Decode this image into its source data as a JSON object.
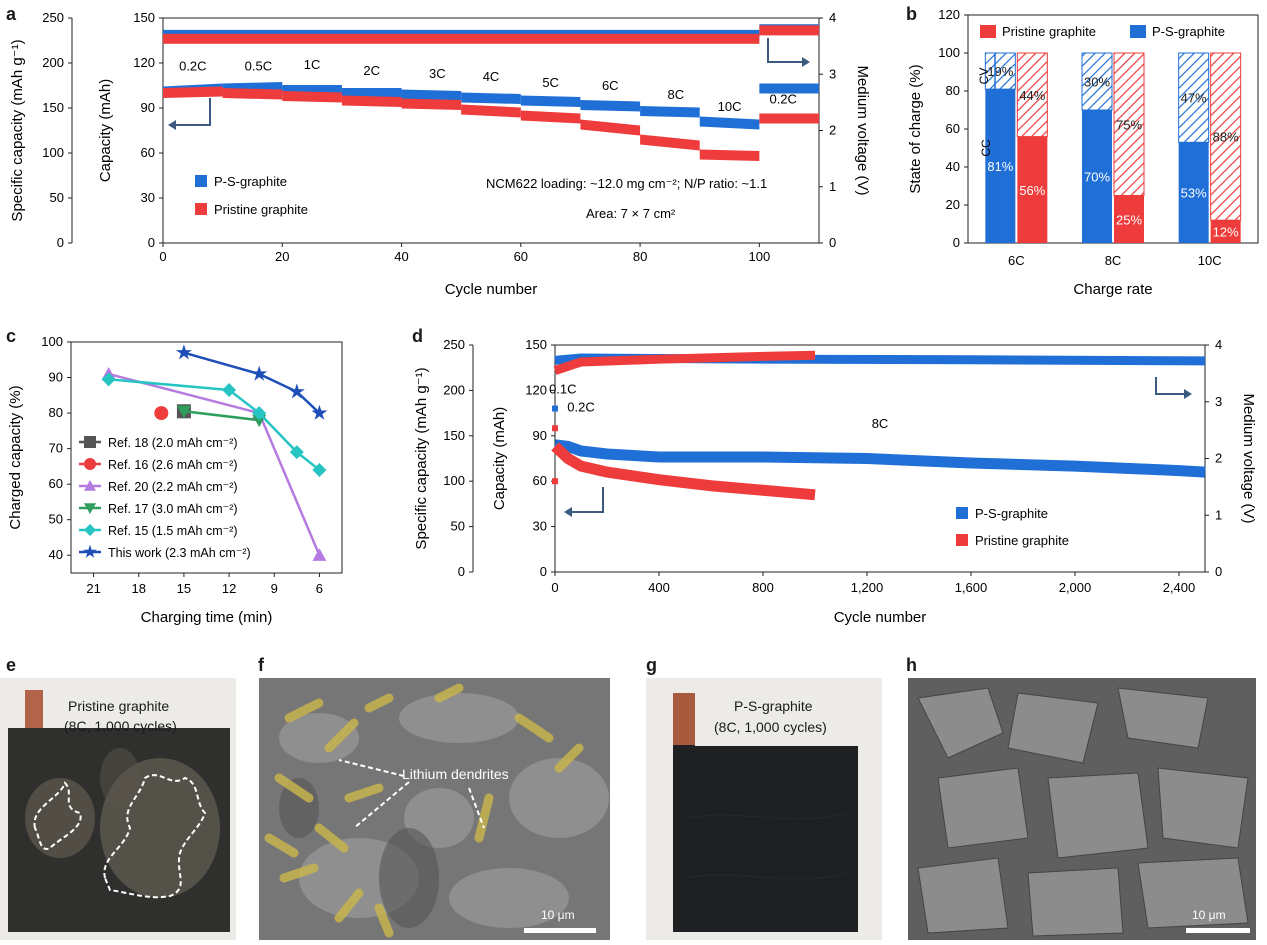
{
  "colors": {
    "blue": "#1f6fd6",
    "red": "#ee3b3b",
    "purple": "#b57be0",
    "green": "#2e9e5c",
    "cyan": "#27c4c4",
    "gray": "#555555",
    "darkblue": "#1e4fb8",
    "bg_cell": "#f2f2ef",
    "sem_gray": "#6e6e6e",
    "dendrite": "#c6b44e"
  },
  "panels": {
    "a": {
      "letter": "a",
      "chart_data": {
        "type": "line",
        "xlabel": "Cycle number",
        "ylabel_left_outer": "Specific capacity (mAh g⁻¹)",
        "ylabel_left_inner": "Capacity (mAh)",
        "ylabel_right": "Medium voltage (V)",
        "xlim": [
          0,
          110
        ],
        "xticks": [
          0,
          20,
          40,
          60,
          80,
          100
        ],
        "ylim_capacity": [
          0,
          150
        ],
        "yticks_capacity": [
          0,
          30,
          60,
          90,
          120,
          150
        ],
        "yticks_specific": [
          0,
          50,
          100,
          150,
          200,
          250
        ],
        "ylim_voltage": [
          0,
          4
        ],
        "yticks_voltage": [
          0,
          1,
          2,
          3,
          4
        ],
        "rate_labels": [
          {
            "text": "0.2C",
            "x": 5,
            "y": 115
          },
          {
            "text": "0.5C",
            "x": 16,
            "y": 115
          },
          {
            "text": "1C",
            "x": 25,
            "y": 116
          },
          {
            "text": "2C",
            "x": 35,
            "y": 112
          },
          {
            "text": "3C",
            "x": 46,
            "y": 110
          },
          {
            "text": "4C",
            "x": 55,
            "y": 108
          },
          {
            "text": "5C",
            "x": 65,
            "y": 104
          },
          {
            "text": "6C",
            "x": 75,
            "y": 102
          },
          {
            "text": "8C",
            "x": 86,
            "y": 96
          },
          {
            "text": "10C",
            "x": 95,
            "y": 88
          },
          {
            "text": "0.2C",
            "x": 104,
            "y": 93
          }
        ],
        "series": [
          {
            "name": "P-S-graphite",
            "color": "#1f6fd6",
            "capacity_segments": [
              [
                0,
                10,
                101,
                103
              ],
              [
                10,
                20,
                103,
                104
              ],
              [
                20,
                30,
                102,
                102
              ],
              [
                30,
                40,
                100,
                100
              ],
              [
                40,
                50,
                99,
                98
              ],
              [
                50,
                60,
                97,
                96
              ],
              [
                60,
                70,
                95,
                94
              ],
              [
                70,
                80,
                92,
                91
              ],
              [
                80,
                90,
                88,
                87
              ],
              [
                90,
                100,
                81,
                79
              ],
              [
                100,
                110,
                103,
                103
              ]
            ],
            "voltage_segments": [
              [
                0,
                100,
                3.7,
                3.65
              ],
              [
                100,
                110,
                3.8,
                3.8
              ]
            ]
          },
          {
            "name": "Pristine graphite",
            "color": "#ee3b3b",
            "capacity_segments": [
              [
                0,
                10,
                100,
                101
              ],
              [
                10,
                20,
                100,
                99
              ],
              [
                20,
                30,
                98,
                97
              ],
              [
                30,
                40,
                95,
                94
              ],
              [
                40,
                50,
                93,
                92
              ],
              [
                50,
                60,
                89,
                87
              ],
              [
                60,
                70,
                85,
                83
              ],
              [
                70,
                80,
                79,
                75
              ],
              [
                80,
                90,
                69,
                65
              ],
              [
                90,
                100,
                59,
                58
              ],
              [
                100,
                110,
                83,
                83
              ]
            ],
            "voltage_segments": [
              [
                0,
                100,
                3.63,
                3.62
              ],
              [
                100,
                110,
                3.78,
                3.77
              ]
            ]
          }
        ],
        "annotation_loading": "NCM622 loading: ~12.0 mg cm⁻²; N/P ratio: ~1.1",
        "annotation_area": "Area: 7 × 7 cm²"
      }
    },
    "b": {
      "letter": "b",
      "chart_data": {
        "type": "bar",
        "xlabel": "Charge rate",
        "ylabel": "State of charge (%)",
        "ylim": [
          0,
          120
        ],
        "yticks": [
          0,
          20,
          40,
          60,
          80,
          100,
          120
        ],
        "categories": [
          "6C",
          "8C",
          "10C"
        ],
        "series": [
          {
            "name": "P-S-graphite",
            "cc": [
              81,
              70,
              53
            ],
            "cv": [
              19,
              30,
              47
            ],
            "cc_labels": [
              "81%",
              "70%",
              "53%"
            ],
            "cv_labels": [
              "19%",
              "30%",
              "47%"
            ]
          },
          {
            "name": "Pristine graphite",
            "cc": [
              56,
              25,
              12
            ],
            "cv": [
              44,
              75,
              88
            ],
            "cc_labels": [
              "56%",
              "25%",
              "12%"
            ],
            "cv_labels": [
              "44%",
              "75%",
              "88%"
            ]
          }
        ],
        "side_labels": {
          "cv": "CV",
          "cc": "CC"
        }
      }
    },
    "c": {
      "letter": "c",
      "chart_data": {
        "type": "line",
        "xlabel": "Charging time (min)",
        "ylabel": "Charged capacity (%)",
        "xlim": [
          22.5,
          4.5
        ],
        "xticks": [
          21,
          18,
          15,
          12,
          9,
          6
        ],
        "ylim": [
          35,
          100
        ],
        "yticks": [
          40,
          50,
          60,
          70,
          80,
          90,
          100
        ],
        "series": [
          {
            "name": "Ref. 18 (2.0 mAh cm⁻²)",
            "marker": "square",
            "color": "#555555",
            "x": [
              15
            ],
            "y": [
              80.5
            ]
          },
          {
            "name": "Ref. 16 (2.6 mAh cm⁻²)",
            "marker": "circle",
            "color": "#ee3b3b",
            "x": [
              16.5
            ],
            "y": [
              80
            ]
          },
          {
            "name": "Ref. 20 (2.2 mAh cm⁻²)",
            "marker": "triangle-up",
            "color": "#b57be0",
            "x": [
              20,
              10,
              6
            ],
            "y": [
              91,
              80,
              40
            ]
          },
          {
            "name": "Ref. 17 (3.0 mAh cm⁻²)",
            "marker": "triangle-down",
            "color": "#2e9e5c",
            "x": [
              15,
              10
            ],
            "y": [
              80.5,
              78
            ]
          },
          {
            "name": "Ref. 15 (1.5 mAh cm⁻²)",
            "marker": "diamond",
            "color": "#27c4c4",
            "x": [
              20,
              12,
              10,
              7.5,
              6
            ],
            "y": [
              89.5,
              86.5,
              80,
              69,
              64
            ]
          },
          {
            "name": "This work (2.3 mAh cm⁻²)",
            "marker": "star",
            "color": "#1e4fb8",
            "x": [
              15,
              10,
              7.5,
              6
            ],
            "y": [
              97,
              91,
              86,
              80
            ]
          }
        ]
      }
    },
    "d": {
      "letter": "d",
      "chart_data": {
        "type": "line",
        "xlabel": "Cycle number",
        "ylabel_left_outer": "Specific capacity (mAh g⁻¹)",
        "ylabel_left_inner": "Capacity (mAh)",
        "ylabel_right": "Medium voltage (V)",
        "xlim": [
          0,
          2500
        ],
        "xticks": [
          0,
          400,
          800,
          1200,
          1600,
          2000,
          2400
        ],
        "xtick_labels": [
          "0",
          "400",
          "800",
          "1,200",
          "1,600",
          "2,000",
          "2,400"
        ],
        "ylim_capacity": [
          0,
          150
        ],
        "yticks_capacity": [
          0,
          30,
          60,
          90,
          120,
          150
        ],
        "yticks_specific": [
          0,
          50,
          100,
          150,
          200,
          250
        ],
        "ylim_voltage": [
          0,
          4
        ],
        "yticks_voltage": [
          0,
          1,
          2,
          3,
          4
        ],
        "rate_labels": [
          {
            "text": "0.1C",
            "x": 30,
            "y": 118
          },
          {
            "text": "0.2C",
            "x": 100,
            "y": 106
          },
          {
            "text": "8C",
            "x": 1250,
            "y": 95
          }
        ],
        "series": [
          {
            "name": "P-S-graphite",
            "color": "#1f6fd6",
            "capacity_points": [
              [
                0,
                84
              ],
              [
                50,
                83
              ],
              [
                100,
                80
              ],
              [
                200,
                78
              ],
              [
                400,
                76
              ],
              [
                800,
                76
              ],
              [
                1200,
                75
              ],
              [
                1600,
                72
              ],
              [
                2000,
                70
              ],
              [
                2400,
                67
              ],
              [
                2500,
                66
              ]
            ],
            "voltage_points": [
              [
                0,
                3.73
              ],
              [
                100,
                3.77
              ],
              [
                800,
                3.75
              ],
              [
                1600,
                3.74
              ],
              [
                2500,
                3.72
              ]
            ]
          },
          {
            "name": "Pristine graphite",
            "color": "#ee3b3b",
            "capacity_points": [
              [
                0,
                83
              ],
              [
                50,
                75
              ],
              [
                100,
                70
              ],
              [
                200,
                66
              ],
              [
                400,
                61
              ],
              [
                600,
                57
              ],
              [
                800,
                54
              ],
              [
                1000,
                51
              ]
            ],
            "voltage_points": [
              [
                0,
                3.55
              ],
              [
                100,
                3.7
              ],
              [
                400,
                3.75
              ],
              [
                800,
                3.8
              ],
              [
                1000,
                3.82
              ]
            ]
          }
        ]
      }
    },
    "e": {
      "letter": "e",
      "label_line1": "Pristine graphite",
      "label_line2": "(8C, 1,000 cycles)"
    },
    "f": {
      "letter": "f",
      "label": "Lithium dendrites",
      "scale_bar": "10 μm"
    },
    "g": {
      "letter": "g",
      "label_line1": "P-S-graphite",
      "label_line2": "(8C, 1,000 cycles)"
    },
    "h": {
      "letter": "h",
      "scale_bar": "10 μm"
    }
  }
}
